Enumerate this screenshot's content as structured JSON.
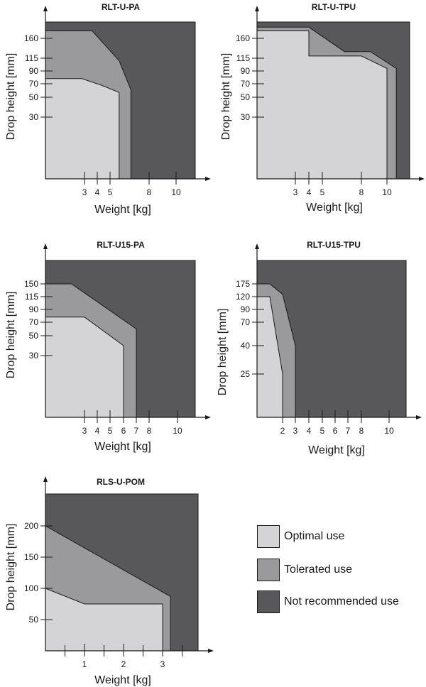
{
  "colors": {
    "optimal": "#d4d4d6",
    "tolerated": "#9a9a9c",
    "not_recommended": "#58585a",
    "stroke": "#1a1a1a"
  },
  "legend": {
    "items": [
      {
        "key": "optimal",
        "label": "Optimal use"
      },
      {
        "key": "tolerated",
        "label": "Tolerated use"
      },
      {
        "key": "not_recommended",
        "label": "Not recommended use"
      }
    ]
  },
  "chart_data": [
    {
      "type": "area",
      "title": "RLT-U-PA",
      "xlabel": "Weight [kg]",
      "ylabel": "Drop height [mm]",
      "x_ticks": [
        3,
        4,
        5,
        8,
        10
      ],
      "y_ticks": [
        30,
        50,
        70,
        90,
        115,
        160
      ],
      "xlim": [
        0,
        11.7
      ],
      "ylim": [
        0,
        182
      ],
      "x_scale": "nonlinear",
      "y_scale": "nonlinear",
      "legend": "none",
      "grid": false,
      "regions": {
        "optimal": [
          [
            0,
            0
          ],
          [
            0,
            78
          ],
          [
            2.8,
            78
          ],
          [
            4.3,
            68
          ],
          [
            5.7,
            57
          ],
          [
            5.7,
            0
          ]
        ],
        "tolerated": [
          [
            0,
            0
          ],
          [
            0,
            170
          ],
          [
            3.6,
            170
          ],
          [
            5.7,
            110
          ],
          [
            6.6,
            61
          ],
          [
            6.6,
            0
          ]
        ]
      }
    },
    {
      "type": "area",
      "title": "RLT-U-TPU",
      "xlabel": "Weight [kg]",
      "ylabel": "Drop height [mm]",
      "x_ticks": [
        3,
        4,
        5,
        8,
        10
      ],
      "y_ticks": [
        30,
        50,
        70,
        90,
        115,
        160
      ],
      "xlim": [
        0,
        11.7
      ],
      "ylim": [
        0,
        182
      ],
      "x_scale": "nonlinear",
      "y_scale": "nonlinear",
      "legend": "none",
      "grid": false,
      "regions": {
        "optimal": [
          [
            0,
            0
          ],
          [
            0,
            170
          ],
          [
            4,
            170
          ],
          [
            4,
            120
          ],
          [
            8,
            120
          ],
          [
            10,
            95
          ],
          [
            10,
            0
          ]
        ],
        "tolerated": [
          [
            0,
            0
          ],
          [
            0,
            175
          ],
          [
            4,
            175
          ],
          [
            6.7,
            130
          ],
          [
            8.7,
            130
          ],
          [
            10.7,
            95
          ],
          [
            10.7,
            0
          ]
        ]
      }
    },
    {
      "type": "area",
      "title": "RLT-U15-PA",
      "xlabel": "Weight [kg]",
      "ylabel": "Drop height [mm]",
      "x_ticks": [
        3,
        4,
        5,
        6,
        7,
        8,
        10
      ],
      "y_ticks": [
        30,
        50,
        70,
        90,
        115,
        150
      ],
      "xlim": [
        0,
        11.7
      ],
      "ylim": [
        0,
        176
      ],
      "x_scale": "nonlinear",
      "y_scale": "nonlinear",
      "legend": "none",
      "grid": false,
      "regions": {
        "optimal": [
          [
            0,
            0
          ],
          [
            0,
            78
          ],
          [
            3,
            78
          ],
          [
            6,
            40
          ],
          [
            6,
            0
          ]
        ],
        "tolerated": [
          [
            0,
            0
          ],
          [
            0,
            150
          ],
          [
            2,
            150
          ],
          [
            7,
            60
          ],
          [
            7,
            0
          ]
        ]
      }
    },
    {
      "type": "area",
      "title": "RLT-U15-TPU",
      "xlabel": "Weight [kg]",
      "ylabel": "Drop height [mm]",
      "x_ticks": [
        2,
        3,
        4,
        5,
        6,
        7,
        8,
        10
      ],
      "y_ticks": [
        25,
        40,
        70,
        90,
        120,
        175
      ],
      "xlim": [
        0,
        11.3
      ],
      "ylim": [
        0,
        205
      ],
      "x_scale": "nonlinear",
      "y_scale": "nonlinear",
      "legend": "none",
      "grid": false,
      "regions": {
        "optimal": [
          [
            0,
            0
          ],
          [
            0,
            120
          ],
          [
            1,
            120
          ],
          [
            2,
            25
          ],
          [
            2,
            0
          ]
        ],
        "tolerated": [
          [
            0,
            0
          ],
          [
            0,
            175
          ],
          [
            1,
            175
          ],
          [
            2,
            130
          ],
          [
            3,
            40
          ],
          [
            3,
            0
          ]
        ]
      }
    },
    {
      "type": "area",
      "title": "RLS-U-POM",
      "xlabel": "Weight [kg]",
      "ylabel": "Drop height [mm]",
      "x_ticks": [
        1,
        2,
        3
      ],
      "y_ticks": [
        50,
        100,
        150,
        200
      ],
      "xlim": [
        0,
        3.9
      ],
      "ylim": [
        0,
        254
      ],
      "x_scale": "linear",
      "y_scale": "linear",
      "legend": "right",
      "grid": false,
      "regions": {
        "optimal": [
          [
            0,
            0
          ],
          [
            0,
            100
          ],
          [
            1,
            75
          ],
          [
            3,
            75
          ],
          [
            3,
            0
          ]
        ],
        "tolerated": [
          [
            0,
            0
          ],
          [
            0,
            200
          ],
          [
            3.2,
            87
          ],
          [
            3.2,
            0
          ]
        ]
      }
    }
  ]
}
